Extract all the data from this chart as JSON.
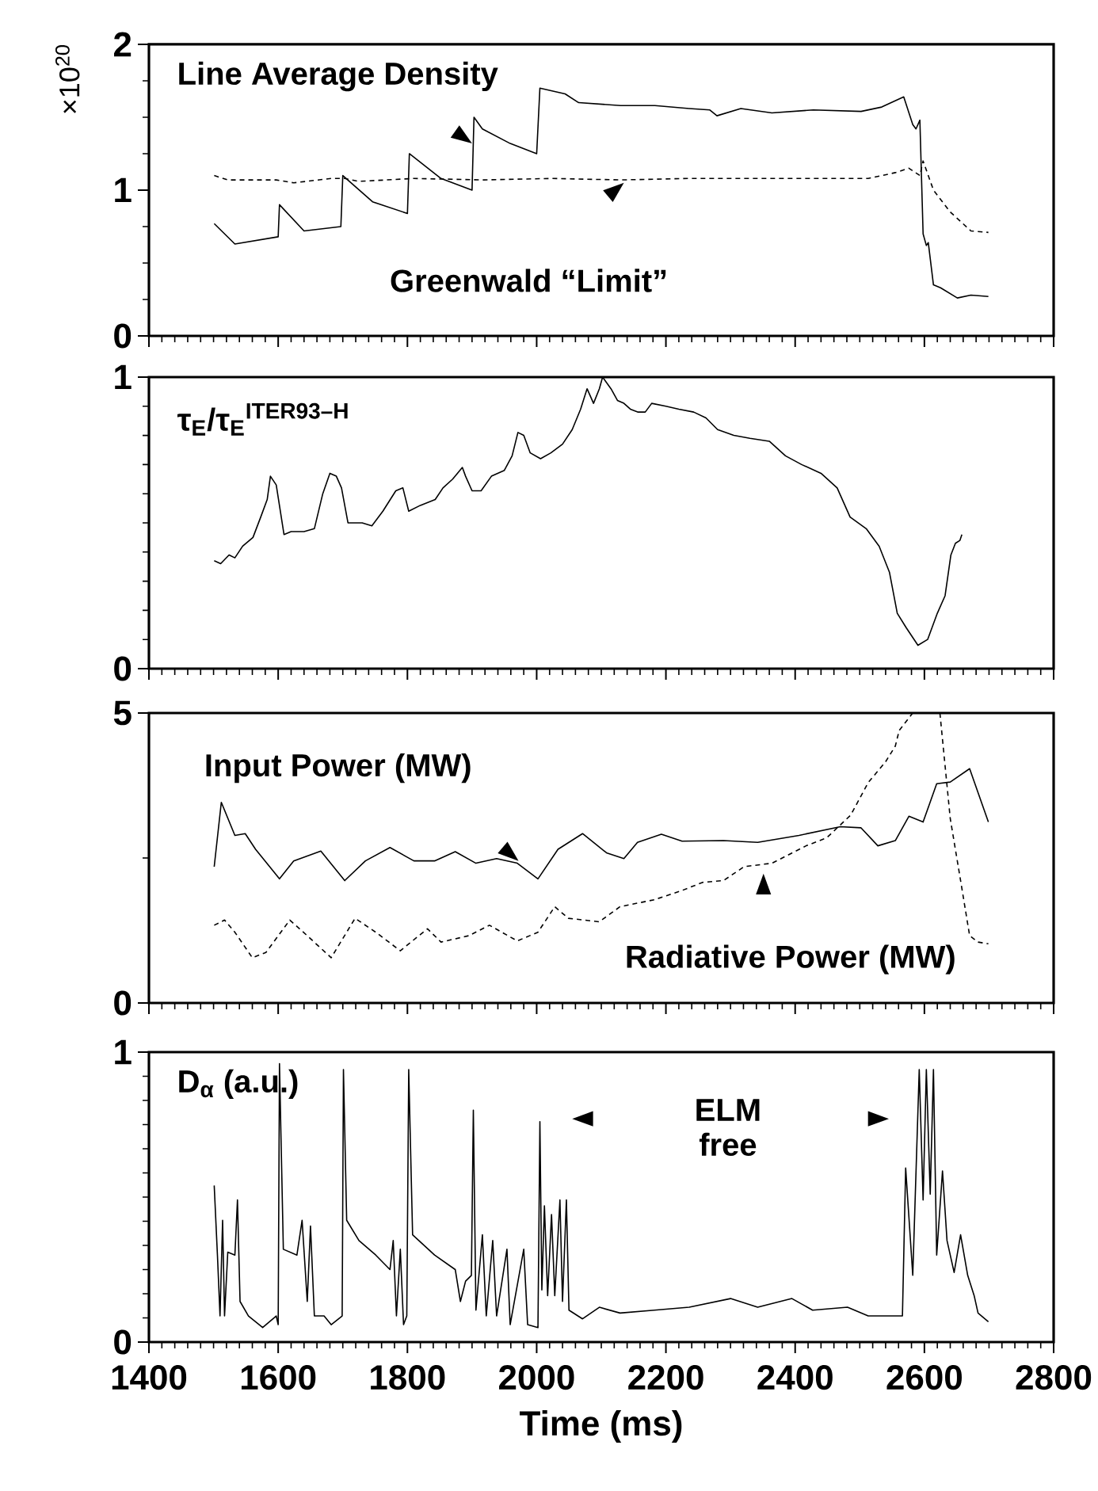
{
  "chart_data": [
    {
      "type": "line",
      "ylabel": "×10$^{20}$",
      "xlim": [
        1400,
        2800
      ],
      "xticks": [
        1400,
        1600,
        1800,
        2000,
        2200,
        2400,
        2600,
        2800
      ],
      "ylim": [
        0,
        2
      ],
      "yticks": [
        0,
        1,
        2
      ],
      "tick_labels": "y",
      "annotations": [
        "Line Average Density",
        "Greenwald “Limit”"
      ],
      "series": [
        {
          "color": "#000000",
          "line_style": "solid",
          "x": [
            1501,
            1533,
            1600,
            1602,
            1640,
            1697,
            1700,
            1746,
            1800,
            1803,
            1852,
            1900,
            1903,
            1916,
            1959,
            2000,
            2005,
            2044,
            2065,
            2130,
            2183,
            2236,
            2268,
            2279,
            2316,
            2364,
            2428,
            2502,
            2534,
            2568,
            2582,
            2587,
            2593,
            2598,
            2603,
            2606,
            2614,
            2625,
            2651,
            2672,
            2699
          ],
          "values": [
            0.77,
            0.63,
            0.68,
            0.9,
            0.72,
            0.75,
            1.1,
            0.92,
            0.84,
            1.25,
            1.08,
            1.0,
            1.5,
            1.42,
            1.32,
            1.25,
            1.7,
            1.66,
            1.6,
            1.58,
            1.58,
            1.56,
            1.55,
            1.51,
            1.56,
            1.53,
            1.55,
            1.54,
            1.57,
            1.64,
            1.45,
            1.42,
            1.48,
            0.7,
            0.62,
            0.64,
            0.35,
            0.33,
            0.26,
            0.28,
            0.27
          ]
        },
        {
          "color": "#000000",
          "line_style": "dashed",
          "x": [
            1501,
            1522,
            1597,
            1624,
            1682,
            1703,
            1725,
            1810,
            1916,
            2023,
            2130,
            2236,
            2513,
            2555,
            2576,
            2593,
            2598,
            2614,
            2640,
            2672,
            2699
          ],
          "values": [
            1.1,
            1.07,
            1.07,
            1.05,
            1.08,
            1.08,
            1.06,
            1.08,
            1.07,
            1.08,
            1.07,
            1.08,
            1.08,
            1.12,
            1.15,
            1.1,
            1.2,
            1.0,
            0.85,
            0.72,
            0.71
          ]
        }
      ]
    },
    {
      "type": "line",
      "xlim": [
        1400,
        2800
      ],
      "xticks": [
        1400,
        1600,
        1800,
        2000,
        2200,
        2400,
        2600,
        2800
      ],
      "ylim": [
        0,
        1
      ],
      "yticks": [
        0,
        1
      ],
      "tick_labels": "y",
      "annotations": [
        "τ$_{E}$/τ$_{E}$$^{ITER93–H}$"
      ],
      "series": [
        {
          "color": "#000000",
          "line_style": "solid",
          "x": [
            1501,
            1511,
            1524,
            1533,
            1545,
            1561,
            1573,
            1583,
            1588,
            1597,
            1609,
            1620,
            1640,
            1656,
            1669,
            1680,
            1690,
            1698,
            1708,
            1730,
            1745,
            1762,
            1782,
            1793,
            1802,
            1820,
            1843,
            1855,
            1870,
            1885,
            1890,
            1900,
            1914,
            1930,
            1950,
            1962,
            1971,
            1980,
            1990,
            2006,
            2022,
            2040,
            2055,
            2068,
            2078,
            2088,
            2097,
            2102,
            2115,
            2125,
            2135,
            2145,
            2157,
            2168,
            2178,
            2200,
            2220,
            2243,
            2262,
            2280,
            2305,
            2330,
            2360,
            2385,
            2410,
            2440,
            2465,
            2485,
            2510,
            2530,
            2546,
            2558,
            2572,
            2590,
            2605,
            2620,
            2632,
            2641,
            2648,
            2655,
            2658
          ],
          "values": [
            0.37,
            0.36,
            0.39,
            0.38,
            0.42,
            0.45,
            0.52,
            0.58,
            0.66,
            0.63,
            0.46,
            0.47,
            0.47,
            0.48,
            0.6,
            0.67,
            0.66,
            0.62,
            0.5,
            0.5,
            0.49,
            0.54,
            0.61,
            0.62,
            0.54,
            0.56,
            0.58,
            0.62,
            0.65,
            0.69,
            0.66,
            0.61,
            0.61,
            0.66,
            0.68,
            0.73,
            0.81,
            0.8,
            0.74,
            0.72,
            0.74,
            0.77,
            0.82,
            0.89,
            0.96,
            0.91,
            0.96,
            1.0,
            0.96,
            0.92,
            0.91,
            0.89,
            0.88,
            0.88,
            0.91,
            0.9,
            0.89,
            0.88,
            0.86,
            0.82,
            0.8,
            0.79,
            0.78,
            0.73,
            0.7,
            0.67,
            0.62,
            0.52,
            0.48,
            0.42,
            0.33,
            0.19,
            0.14,
            0.08,
            0.1,
            0.19,
            0.25,
            0.39,
            0.43,
            0.44,
            0.46
          ]
        }
      ]
    },
    {
      "type": "line",
      "xlim": [
        1400,
        2800
      ],
      "xticks": [
        1400,
        1600,
        1800,
        2000,
        2200,
        2400,
        2600,
        2800
      ],
      "ylim": [
        0,
        5
      ],
      "yticks": [
        0,
        5
      ],
      "tick_labels": "y",
      "annotations": [
        "Input Power (MW)",
        "Radiative Power (MW)"
      ],
      "series": [
        {
          "color": "#000000",
          "line_style": "solid",
          "x": [
            1501,
            1512,
            1533,
            1549,
            1565,
            1602,
            1624,
            1666,
            1703,
            1735,
            1773,
            1810,
            1842,
            1874,
            1906,
            1938,
            1970,
            2002,
            2033,
            2071,
            2108,
            2135,
            2156,
            2193,
            2225,
            2289,
            2342,
            2406,
            2470,
            2502,
            2528,
            2555,
            2576,
            2598,
            2619,
            2640,
            2670,
            2699
          ],
          "values": [
            2.35,
            3.46,
            2.89,
            2.92,
            2.65,
            2.14,
            2.45,
            2.62,
            2.11,
            2.45,
            2.68,
            2.45,
            2.45,
            2.61,
            2.41,
            2.49,
            2.41,
            2.14,
            2.65,
            2.92,
            2.59,
            2.49,
            2.77,
            2.91,
            2.79,
            2.8,
            2.77,
            2.89,
            3.04,
            3.02,
            2.71,
            2.8,
            3.22,
            3.12,
            3.78,
            3.81,
            4.04,
            3.12
          ]
        },
        {
          "color": "#000000",
          "line_style": "dashed",
          "x": [
            1501,
            1517,
            1533,
            1560,
            1581,
            1618,
            1645,
            1682,
            1719,
            1751,
            1789,
            1831,
            1852,
            1895,
            1927,
            1970,
            2002,
            2028,
            2049,
            2097,
            2129,
            2182,
            2225,
            2257,
            2289,
            2321,
            2364,
            2417,
            2449,
            2486,
            2513,
            2540,
            2555,
            2561,
            2582,
            2600,
            2624,
            2640,
            2656,
            2670,
            2683,
            2699
          ],
          "values": [
            1.34,
            1.43,
            1.22,
            0.78,
            0.87,
            1.43,
            1.16,
            0.78,
            1.46,
            1.22,
            0.9,
            1.28,
            1.05,
            1.16,
            1.34,
            1.07,
            1.22,
            1.66,
            1.46,
            1.4,
            1.66,
            1.78,
            1.94,
            2.08,
            2.11,
            2.35,
            2.41,
            2.71,
            2.85,
            3.24,
            3.8,
            4.16,
            4.43,
            4.7,
            5.0,
            null,
            5.0,
            3.18,
            2.11,
            1.16,
            1.05,
            1.02
          ]
        }
      ]
    },
    {
      "type": "line",
      "xlabel": "Time (ms)",
      "xlim": [
        1400,
        2800
      ],
      "xticks": [
        1400,
        1600,
        1800,
        2000,
        2200,
        2400,
        2600,
        2800
      ],
      "ylim": [
        0,
        1
      ],
      "yticks": [
        0,
        1
      ],
      "annotations": [
        "D$_{α}$ (a.u.)",
        "ELM free"
      ],
      "series": [
        {
          "color": "#000000",
          "line_style": "solid",
          "x": [
            1501,
            1506,
            1510,
            1514,
            1517,
            1522,
            1533,
            1537,
            1541,
            1554,
            1576,
            1597,
            1600,
            1602,
            1608,
            1629,
            1637,
            1645,
            1650,
            1656,
            1671,
            1682,
            1699,
            1701,
            1706,
            1725,
            1751,
            1773,
            1778,
            1783,
            1789,
            1794,
            1799,
            1802,
            1808,
            1842,
            1874,
            1882,
            1890,
            1899,
            1902,
            1906,
            1916,
            1922,
            1932,
            1938,
            1954,
            1959,
            1980,
            1986,
            2002,
            2005,
            2008,
            2012,
            2017,
            2023,
            2028,
            2036,
            2040,
            2046,
            2050,
            2071,
            2097,
            2129,
            2182,
            2236,
            2300,
            2342,
            2395,
            2427,
            2481,
            2513,
            2566,
            2571,
            2582,
            2592,
            2598,
            2603,
            2609,
            2614,
            2619,
            2628,
            2635,
            2646,
            2656,
            2667,
            2677,
            2683,
            2699
          ],
          "values": [
            0.54,
            0.3,
            0.09,
            0.42,
            0.09,
            0.31,
            0.3,
            0.49,
            0.14,
            0.09,
            0.05,
            0.09,
            0.06,
            0.96,
            0.32,
            0.3,
            0.42,
            0.14,
            0.4,
            0.09,
            0.09,
            0.06,
            0.09,
            0.94,
            0.42,
            0.35,
            0.3,
            0.25,
            0.35,
            0.09,
            0.32,
            0.06,
            0.09,
            0.94,
            0.37,
            0.3,
            0.25,
            0.14,
            0.21,
            0.23,
            0.8,
            0.11,
            0.37,
            0.09,
            0.35,
            0.09,
            0.32,
            0.06,
            0.32,
            0.06,
            0.05,
            0.76,
            0.18,
            0.47,
            0.16,
            0.44,
            0.16,
            0.49,
            0.14,
            0.49,
            0.11,
            0.08,
            0.12,
            0.1,
            0.11,
            0.12,
            0.15,
            0.12,
            0.15,
            0.11,
            0.12,
            0.09,
            0.09,
            0.6,
            0.23,
            0.94,
            0.49,
            0.94,
            0.51,
            0.94,
            0.3,
            0.59,
            0.35,
            0.24,
            0.37,
            0.23,
            0.16,
            0.1,
            0.07
          ]
        }
      ]
    }
  ]
}
